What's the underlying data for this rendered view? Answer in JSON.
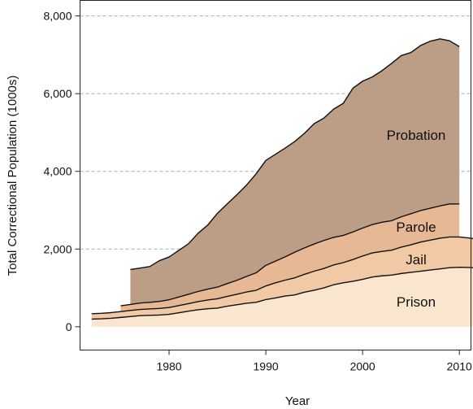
{
  "chart_data": {
    "type": "area",
    "stacked": true,
    "title": "",
    "xlabel": "Year",
    "ylabel": "Total Correctional Population (1000s)",
    "xlim": [
      1970.8,
      2011.2
    ],
    "ylim": [
      -600,
      8400
    ],
    "x_ticks": [
      1980,
      1990,
      2000,
      2010
    ],
    "y_ticks": [
      0,
      2000,
      4000,
      6000,
      8000
    ],
    "y_tick_labels": [
      "0",
      "2,000",
      "4,000",
      "6,000",
      "8,000"
    ],
    "grid": "horizontal dashed",
    "colors": {
      "prison": "#fae6cf",
      "jail": "#f2c9a5",
      "parole": "#e6b894",
      "probation": "#bc9e86",
      "line": "#111111",
      "grid": "#aaaaaa"
    },
    "series": [
      {
        "name": "Prison",
        "start": 1972,
        "values": [
          196,
          204,
          218,
          240,
          263,
          285,
          294,
          301,
          320,
          360,
          400,
          437,
          463,
          480,
          530,
          565,
          604,
          628,
          700,
          740,
          790,
          820,
          890,
          940,
          1000,
          1080,
          1130,
          1170,
          1220,
          1280,
          1310,
          1330,
          1370,
          1400,
          1430,
          1460,
          1490,
          1520,
          1530,
          1525,
          1510
        ]
      },
      {
        "name": "Jail",
        "start": 1972,
        "values": [
          140,
          142,
          145,
          150,
          155,
          160,
          165,
          170,
          175,
          185,
          195,
          210,
          225,
          240,
          250,
          270,
          290,
          310,
          350,
          390,
          410,
          440,
          460,
          490,
          500,
          510,
          520,
          560,
          600,
          620,
          630,
          640,
          680,
          710,
          750,
          770,
          790,
          790,
          780,
          760,
          740
        ]
      },
      {
        "name": "Parole",
        "start": 1975,
        "values": [
          150,
          155,
          165,
          170,
          180,
          200,
          220,
          240,
          260,
          280,
          300,
          330,
          360,
          400,
          450,
          530,
          560,
          600,
          660,
          680,
          700,
          720,
          710,
          700,
          710,
          720,
          730,
          750,
          760,
          780,
          800,
          810,
          820,
          830,
          850,
          850
        ]
      },
      {
        "name": "Probation",
        "start": 1976,
        "values": [
          900,
          900,
          920,
          1050,
          1100,
          1200,
          1300,
          1500,
          1650,
          1900,
          2050,
          2200,
          2350,
          2550,
          2700,
          2750,
          2800,
          2850,
          2950,
          3100,
          3150,
          3300,
          3400,
          3700,
          3780,
          3800,
          3900,
          4050,
          4150,
          4150,
          4250,
          4300,
          4300,
          4200,
          4050
        ]
      }
    ],
    "labels": {
      "probation": "Probation",
      "parole": "Parole",
      "jail": "Jail",
      "prison": "Prison"
    }
  }
}
